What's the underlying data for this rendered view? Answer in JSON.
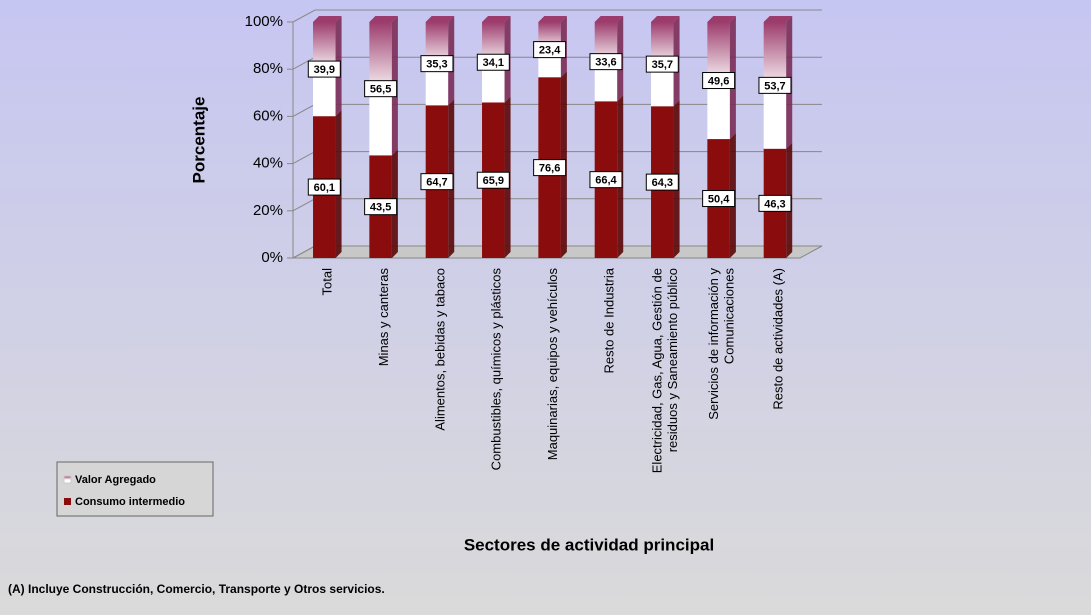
{
  "chart_data": {
    "type": "stacked_bar_3d",
    "ylabel": "Porcentaje",
    "xlabel": "Sectores de actividad principal",
    "footnote": "(A) Incluye Construcción, Comercio, Transporte y Otros servicios.",
    "categories": [
      "Total",
      "Minas y canteras",
      "Alimentos, bebidas y tabaco",
      "Combustibles, químicos y plásticos",
      "Maquinarias, equipos y vehículos",
      "Resto de Industria",
      "Electricidad, Gas, Agua, Gestión de\nresiduos y Saneamiento público",
      "Servicios de información y\nComunicaciones",
      "Resto de actividades (A)"
    ],
    "series": [
      {
        "name": "Consumo intermedio",
        "color": "#8b0c0c",
        "values": [
          60.1,
          43.5,
          64.7,
          65.9,
          76.6,
          66.4,
          64.3,
          50.4,
          46.3
        ],
        "value_labels": [
          "60,1",
          "43,5",
          "64,7",
          "65,9",
          "76,6",
          "66,4",
          "64,3",
          "50,4",
          "46,3"
        ]
      },
      {
        "name": "Valor Agregado",
        "color": "#9c3c6c",
        "values": [
          39.9,
          56.5,
          35.3,
          34.1,
          23.4,
          33.6,
          35.7,
          49.6,
          53.7
        ],
        "value_labels": [
          "39,9",
          "56,5",
          "35,3",
          "34,1",
          "23,4",
          "33,6",
          "35,7",
          "49,6",
          "53,7"
        ]
      }
    ],
    "ylim": [
      0,
      100
    ],
    "yticks": [
      {
        "value": 0,
        "label": "0%"
      },
      {
        "value": 20,
        "label": "20%"
      },
      {
        "value": 40,
        "label": "40%"
      },
      {
        "value": 60,
        "label": "60%"
      },
      {
        "value": 80,
        "label": "80%"
      },
      {
        "value": 100,
        "label": "100%"
      }
    ],
    "grid": true,
    "legend": "bottom-left"
  }
}
